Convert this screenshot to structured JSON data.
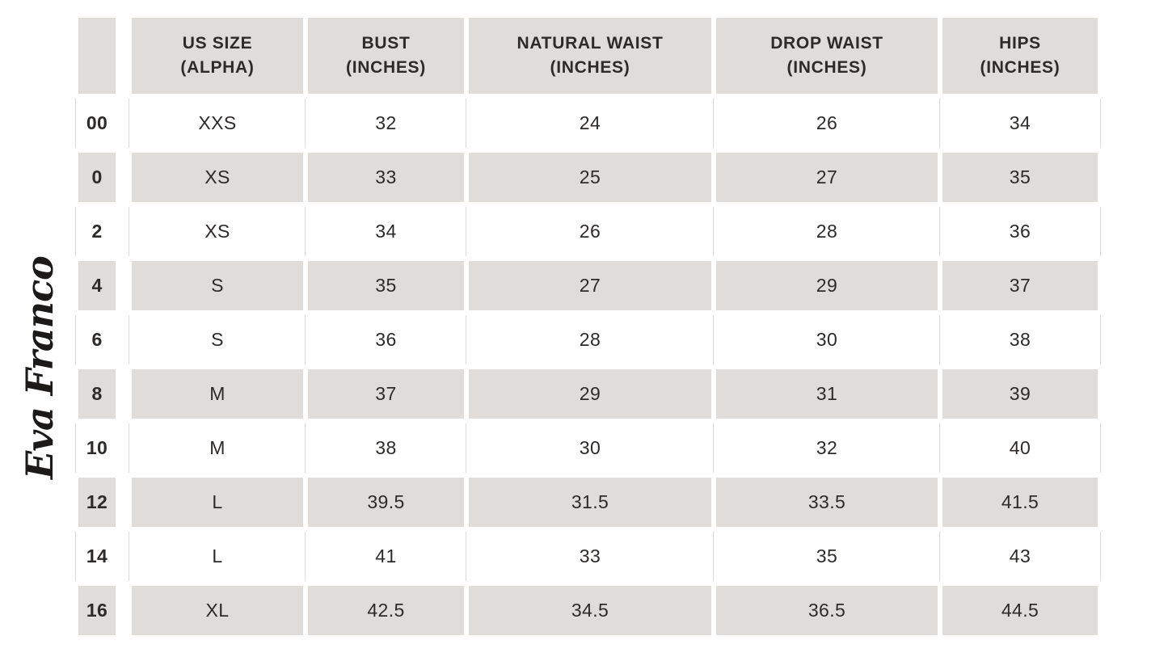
{
  "brand": {
    "logo_text": "Eva Franco"
  },
  "colors": {
    "row_shade": "#e0dcd9",
    "text": "#2d2b29",
    "background": "#ffffff",
    "hairline": "#dcd8d5"
  },
  "chart_data": {
    "type": "table",
    "row_header_label": "",
    "header": [
      {
        "key": "us-size-alpha",
        "line1": "US SIZE",
        "line2": "(ALPHA)"
      },
      {
        "key": "bust",
        "line1": "BUST",
        "line2": "(INCHES)"
      },
      {
        "key": "natural-waist",
        "line1": "NATURAL WAIST",
        "line2": "(INCHES)"
      },
      {
        "key": "drop-waist",
        "line1": "DROP WAIST",
        "line2": "(INCHES)"
      },
      {
        "key": "hips",
        "line1": "HIPS",
        "line2": "(INCHES)"
      }
    ],
    "rows": [
      {
        "us_size": "00",
        "alpha": "XXS",
        "bust": "32",
        "natural_waist": "24",
        "drop_waist": "26",
        "hips": "34"
      },
      {
        "us_size": "0",
        "alpha": "XS",
        "bust": "33",
        "natural_waist": "25",
        "drop_waist": "27",
        "hips": "35"
      },
      {
        "us_size": "2",
        "alpha": "XS",
        "bust": "34",
        "natural_waist": "26",
        "drop_waist": "28",
        "hips": "36"
      },
      {
        "us_size": "4",
        "alpha": "S",
        "bust": "35",
        "natural_waist": "27",
        "drop_waist": "29",
        "hips": "37"
      },
      {
        "us_size": "6",
        "alpha": "S",
        "bust": "36",
        "natural_waist": "28",
        "drop_waist": "30",
        "hips": "38"
      },
      {
        "us_size": "8",
        "alpha": "M",
        "bust": "37",
        "natural_waist": "29",
        "drop_waist": "31",
        "hips": "39"
      },
      {
        "us_size": "10",
        "alpha": "M",
        "bust": "38",
        "natural_waist": "30",
        "drop_waist": "32",
        "hips": "40"
      },
      {
        "us_size": "12",
        "alpha": "L",
        "bust": "39.5",
        "natural_waist": "31.5",
        "drop_waist": "33.5",
        "hips": "41.5"
      },
      {
        "us_size": "14",
        "alpha": "L",
        "bust": "41",
        "natural_waist": "33",
        "drop_waist": "35",
        "hips": "43"
      },
      {
        "us_size": "16",
        "alpha": "XL",
        "bust": "42.5",
        "natural_waist": "34.5",
        "drop_waist": "36.5",
        "hips": "44.5"
      }
    ]
  }
}
